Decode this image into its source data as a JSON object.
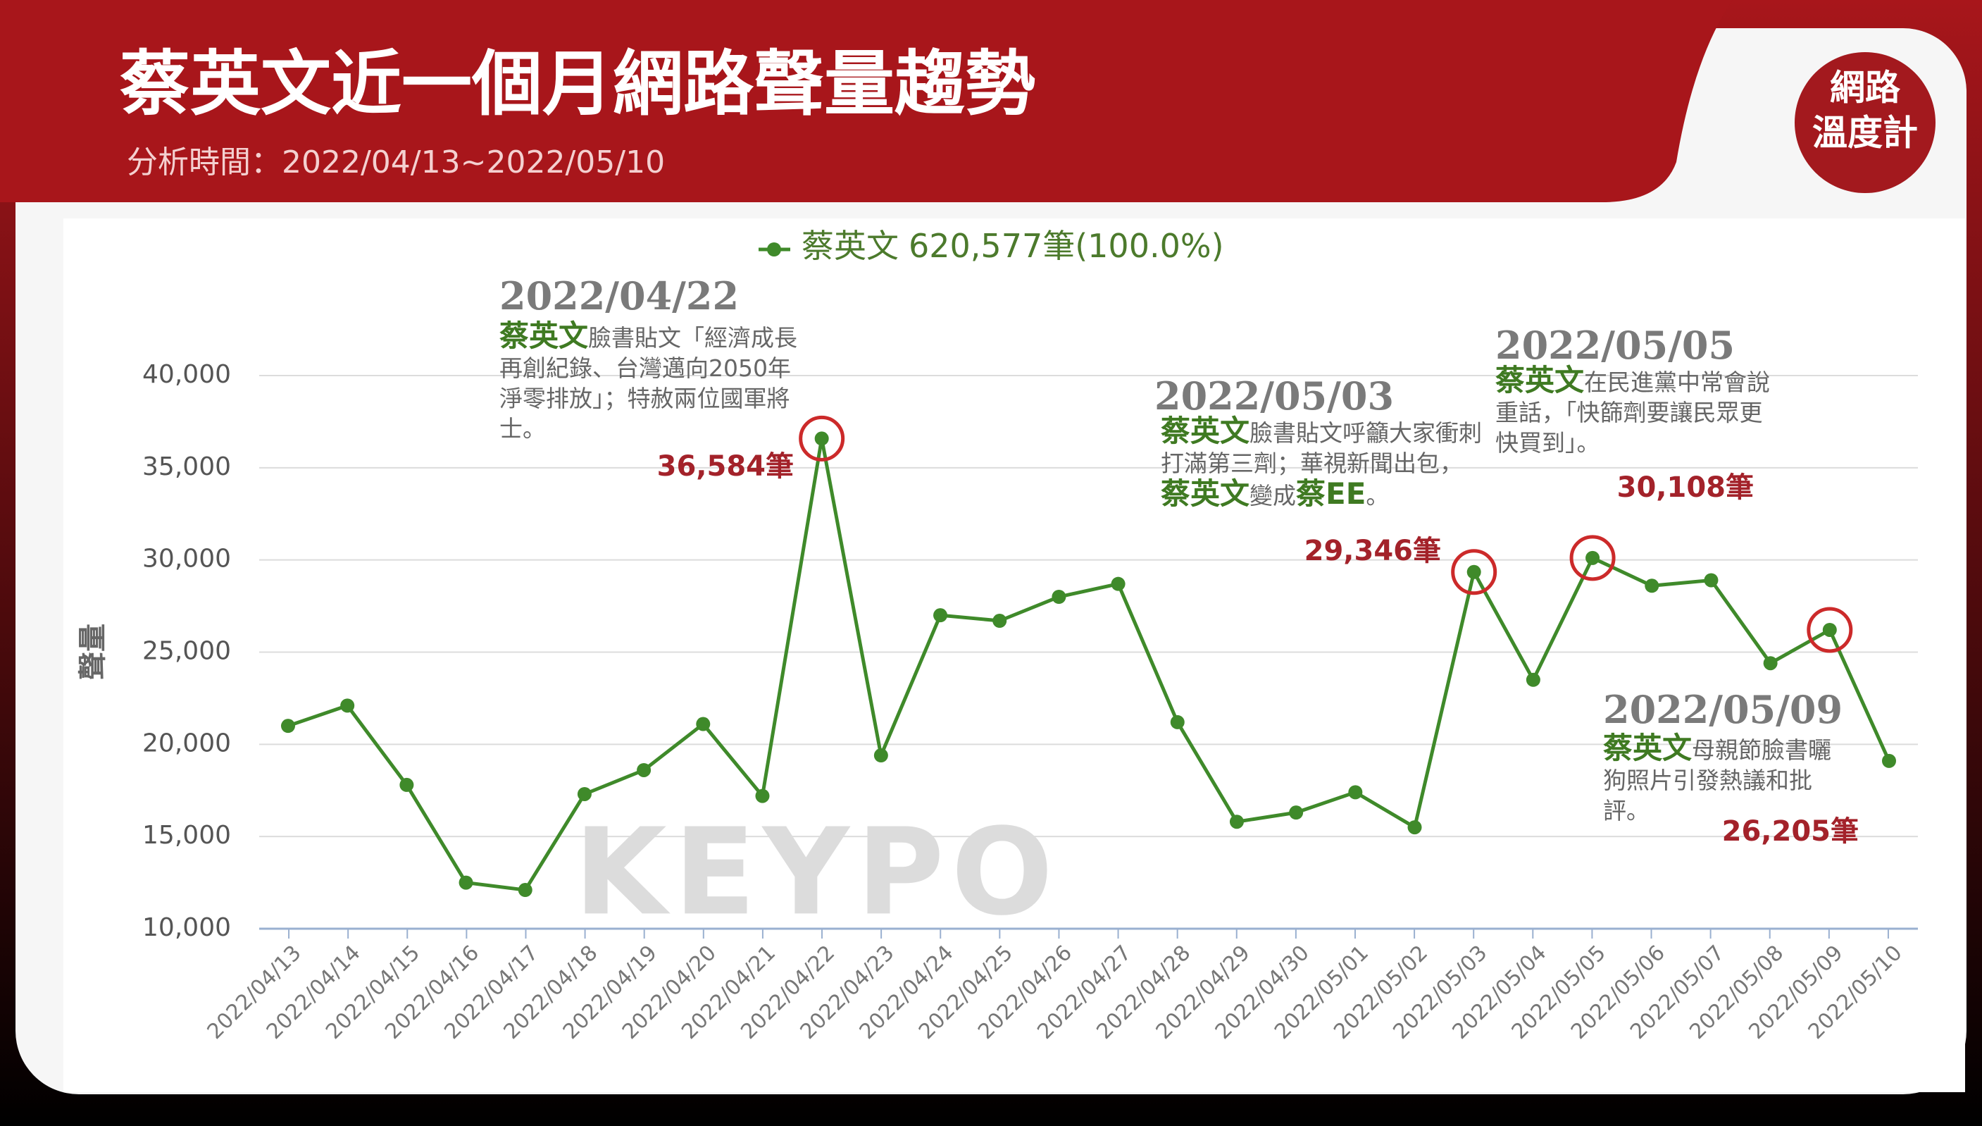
{
  "header": {
    "title": "蔡英文近一個月網路聲量趨勢",
    "subtitle": "分析時間：2022/04/13~2022/05/10",
    "logo": [
      "網路",
      "溫度計"
    ]
  },
  "chart_data": {
    "type": "line",
    "watermark": "KEYPO",
    "y_label": "聲量",
    "categories": [
      "2022/04/13",
      "2022/04/14",
      "2022/04/15",
      "2022/04/16",
      "2022/04/17",
      "2022/04/18",
      "2022/04/19",
      "2022/04/20",
      "2022/04/21",
      "2022/04/22",
      "2022/04/23",
      "2022/04/24",
      "2022/04/25",
      "2022/04/26",
      "2022/04/27",
      "2022/04/28",
      "2022/04/29",
      "2022/04/30",
      "2022/05/01",
      "2022/05/02",
      "2022/05/03",
      "2022/05/04",
      "2022/05/05",
      "2022/05/06",
      "2022/05/07",
      "2022/05/08",
      "2022/05/09",
      "2022/05/10"
    ],
    "series": [
      {
        "name": "蔡英文",
        "total_label": "620,577筆(100.0%)",
        "color": "#3f8a2a",
        "values": [
          21000,
          22100,
          17800,
          12500,
          12100,
          17300,
          18600,
          21100,
          17200,
          36584,
          19400,
          27000,
          26700,
          28000,
          28700,
          21200,
          15800,
          16300,
          17400,
          15500,
          29346,
          23500,
          30108,
          28600,
          28900,
          24400,
          26205,
          19100
        ]
      }
    ],
    "ylim": [
      10000,
      40000
    ],
    "yticks": [
      {
        "value": 10000,
        "label": "10,000"
      },
      {
        "value": 15000,
        "label": "15,000"
      },
      {
        "value": 20000,
        "label": "20,000"
      },
      {
        "value": 25000,
        "label": "25,000"
      },
      {
        "value": 30000,
        "label": "30,000"
      },
      {
        "value": 35000,
        "label": "35,000"
      },
      {
        "value": 40000,
        "label": "40,000"
      }
    ],
    "grid": true,
    "annotations": [
      {
        "index": 9,
        "date": "2022/04/22",
        "text": [
          {
            "text": "蔡英文",
            "color": "#3f7a22"
          },
          {
            "text": "臉書貼文「經濟成長再創紀錄、台灣邁向2050年淨零排放」；特赦兩位國軍將士。"
          }
        ],
        "value_label": "36,584",
        "unit": "筆"
      },
      {
        "index": 20,
        "date": "2022/05/03",
        "text": [
          {
            "text": "蔡英文",
            "color": "#3f7a22"
          },
          {
            "text": "臉書貼文呼籲大家衝刺打滿第三劑；華視新聞出包，"
          },
          {
            "text": "蔡英文",
            "color": "#3f7a22"
          },
          {
            "text": "變成"
          },
          {
            "text": "蔡EE",
            "color": "#3f7a22"
          },
          {
            "text": "。"
          }
        ],
        "value_label": "29,346",
        "unit": "筆"
      },
      {
        "index": 22,
        "date": "2022/05/05",
        "text": [
          {
            "text": "蔡英文",
            "color": "#3f7a22"
          },
          {
            "text": "在民進黨中常會說重話，「快篩劑要讓民眾更快買到」。"
          }
        ],
        "value_label": "30,108",
        "unit": "筆"
      },
      {
        "index": 26,
        "date": "2022/05/09",
        "text": [
          {
            "text": "蔡英文",
            "color": "#3f7a22"
          },
          {
            "text": "母親節臉書曬狗照片引發熱議和批評。"
          }
        ],
        "value_label": "26,205",
        "unit": "筆"
      }
    ]
  }
}
